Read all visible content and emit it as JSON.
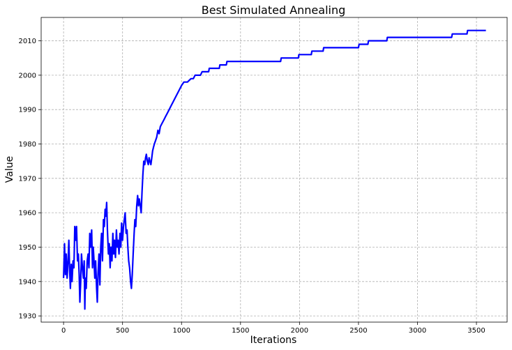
{
  "chart_data": {
    "type": "line",
    "title": "Best Simulated Annealing",
    "xlabel": "Iterations",
    "ylabel": "Value",
    "xlim": [
      -190,
      3760
    ],
    "ylim": [
      1928.2,
      2016.8
    ],
    "xticks": [
      0,
      500,
      1000,
      1500,
      2000,
      2500,
      3000,
      3500
    ],
    "yticks": [
      1930,
      1940,
      1950,
      1960,
      1970,
      1980,
      1990,
      2000,
      2010
    ],
    "grid": true,
    "series": [
      {
        "color": "#0000ff",
        "points": [
          [
            0,
            1941
          ],
          [
            8,
            1951
          ],
          [
            15,
            1942
          ],
          [
            22,
            1948
          ],
          [
            30,
            1941
          ],
          [
            38,
            1946
          ],
          [
            45,
            1952
          ],
          [
            52,
            1943
          ],
          [
            58,
            1938
          ],
          [
            65,
            1945
          ],
          [
            72,
            1940
          ],
          [
            80,
            1946
          ],
          [
            88,
            1944
          ],
          [
            95,
            1956
          ],
          [
            102,
            1952
          ],
          [
            110,
            1956
          ],
          [
            118,
            1946
          ],
          [
            125,
            1948
          ],
          [
            132,
            1942
          ],
          [
            138,
            1934
          ],
          [
            145,
            1940
          ],
          [
            152,
            1948
          ],
          [
            160,
            1944
          ],
          [
            168,
            1941
          ],
          [
            175,
            1946
          ],
          [
            180,
            1932
          ],
          [
            185,
            1941
          ],
          [
            192,
            1938
          ],
          [
            200,
            1946
          ],
          [
            208,
            1948
          ],
          [
            215,
            1944
          ],
          [
            222,
            1954
          ],
          [
            230,
            1950
          ],
          [
            238,
            1955
          ],
          [
            245,
            1944
          ],
          [
            252,
            1950
          ],
          [
            258,
            1946
          ],
          [
            265,
            1941
          ],
          [
            272,
            1946
          ],
          [
            280,
            1938
          ],
          [
            286,
            1934
          ],
          [
            292,
            1942
          ],
          [
            300,
            1948
          ],
          [
            308,
            1939
          ],
          [
            315,
            1950
          ],
          [
            322,
            1954
          ],
          [
            330,
            1946
          ],
          [
            338,
            1958
          ],
          [
            345,
            1956
          ],
          [
            352,
            1961
          ],
          [
            358,
            1959
          ],
          [
            365,
            1963
          ],
          [
            372,
            1955
          ],
          [
            380,
            1948
          ],
          [
            388,
            1951
          ],
          [
            395,
            1944
          ],
          [
            402,
            1950
          ],
          [
            410,
            1946
          ],
          [
            418,
            1954
          ],
          [
            425,
            1948
          ],
          [
            432,
            1952
          ],
          [
            440,
            1947
          ],
          [
            448,
            1955
          ],
          [
            455,
            1950
          ],
          [
            462,
            1952
          ],
          [
            470,
            1948
          ],
          [
            478,
            1954
          ],
          [
            485,
            1950
          ],
          [
            492,
            1957
          ],
          [
            500,
            1952
          ],
          [
            508,
            1956
          ],
          [
            515,
            1958
          ],
          [
            522,
            1960
          ],
          [
            530,
            1954
          ],
          [
            538,
            1955
          ],
          [
            545,
            1950
          ],
          [
            552,
            1946
          ],
          [
            560,
            1944
          ],
          [
            568,
            1940
          ],
          [
            575,
            1938
          ],
          [
            582,
            1942
          ],
          [
            590,
            1948
          ],
          [
            598,
            1954
          ],
          [
            605,
            1958
          ],
          [
            612,
            1956
          ],
          [
            620,
            1962
          ],
          [
            628,
            1965
          ],
          [
            635,
            1962
          ],
          [
            642,
            1964
          ],
          [
            650,
            1962
          ],
          [
            658,
            1960
          ],
          [
            665,
            1966
          ],
          [
            672,
            1971
          ],
          [
            680,
            1975
          ],
          [
            688,
            1974
          ],
          [
            695,
            1976
          ],
          [
            702,
            1977
          ],
          [
            710,
            1975
          ],
          [
            718,
            1974
          ],
          [
            725,
            1976
          ],
          [
            732,
            1975
          ],
          [
            740,
            1974
          ],
          [
            748,
            1976
          ],
          [
            755,
            1978
          ],
          [
            762,
            1979
          ],
          [
            770,
            1980
          ],
          [
            780,
            1981
          ],
          [
            790,
            1982
          ],
          [
            800,
            1984
          ],
          [
            810,
            1983
          ],
          [
            820,
            1985
          ],
          [
            835,
            1986
          ],
          [
            850,
            1987
          ],
          [
            865,
            1988
          ],
          [
            880,
            1989
          ],
          [
            895,
            1990
          ],
          [
            910,
            1991
          ],
          [
            925,
            1992
          ],
          [
            940,
            1993
          ],
          [
            955,
            1994
          ],
          [
            970,
            1995
          ],
          [
            985,
            1996
          ],
          [
            1000,
            1997
          ],
          [
            1020,
            1998
          ],
          [
            1050,
            1998
          ],
          [
            1080,
            1999
          ],
          [
            1100,
            1999
          ],
          [
            1115,
            2000
          ],
          [
            1160,
            2000
          ],
          [
            1175,
            2001
          ],
          [
            1230,
            2001
          ],
          [
            1235,
            2002
          ],
          [
            1320,
            2002
          ],
          [
            1325,
            2003
          ],
          [
            1380,
            2003
          ],
          [
            1385,
            2004
          ],
          [
            1550,
            2004
          ],
          [
            1840,
            2004
          ],
          [
            1845,
            2005
          ],
          [
            1990,
            2005
          ],
          [
            1995,
            2006
          ],
          [
            2100,
            2006
          ],
          [
            2105,
            2007
          ],
          [
            2200,
            2007
          ],
          [
            2205,
            2008
          ],
          [
            2500,
            2008
          ],
          [
            2505,
            2009
          ],
          [
            2580,
            2009
          ],
          [
            2585,
            2010
          ],
          [
            2740,
            2010
          ],
          [
            2745,
            2011
          ],
          [
            3290,
            2011
          ],
          [
            3295,
            2012
          ],
          [
            3420,
            2012
          ],
          [
            3425,
            2013
          ],
          [
            3580,
            2013
          ]
        ]
      }
    ]
  }
}
